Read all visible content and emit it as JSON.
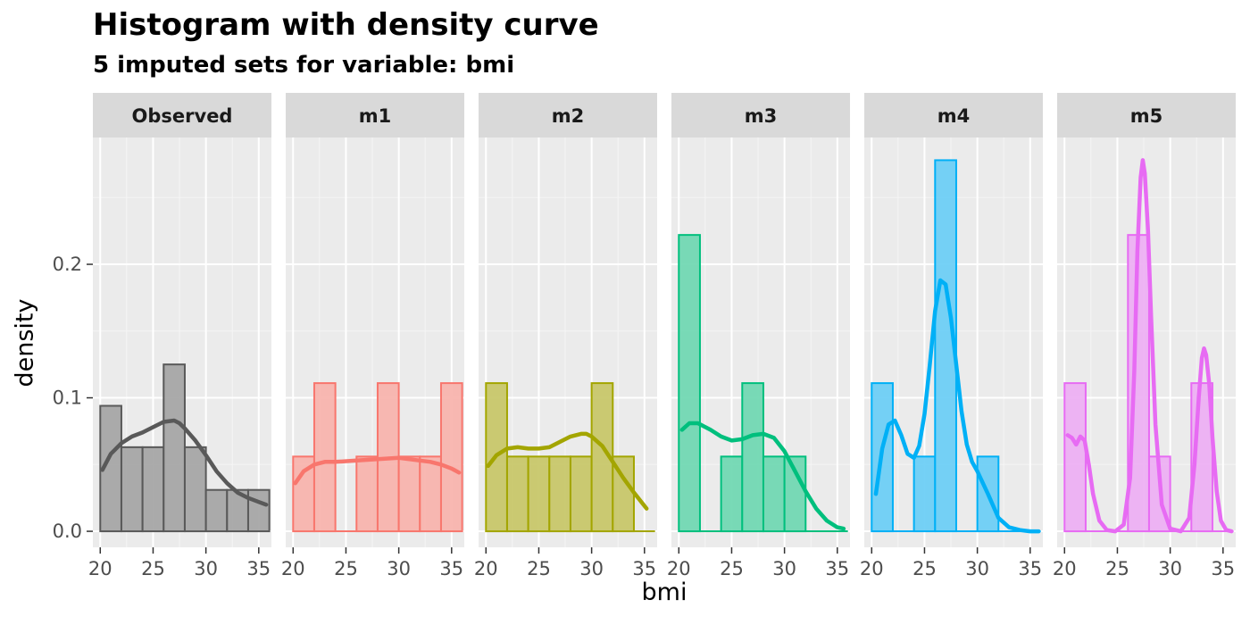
{
  "title": "Histogram with density curve",
  "subtitle": "5  imputed sets for variable:  bmi",
  "chart_data": {
    "type": "histogram",
    "xlabel": "bmi",
    "ylabel": "density",
    "xlim": [
      19.3,
      36.2
    ],
    "ylim": [
      -0.012,
      0.295
    ],
    "xticks": [
      20,
      25,
      30,
      35
    ],
    "yticks": [
      0.0,
      0.1,
      0.2
    ],
    "ytick_labels": [
      "0.0",
      "0.1",
      "0.2"
    ],
    "grid": true,
    "panel_background": "#EBEBEB",
    "panels": [
      {
        "name": "Observed",
        "color": "#595959",
        "fill": "#A6A6A6",
        "bins": [
          {
            "x0": 20,
            "x1": 22,
            "y": 0.094
          },
          {
            "x0": 22,
            "x1": 24,
            "y": 0.063
          },
          {
            "x0": 24,
            "x1": 26,
            "y": 0.063
          },
          {
            "x0": 26,
            "x1": 28,
            "y": 0.125
          },
          {
            "x0": 28,
            "x1": 30,
            "y": 0.063
          },
          {
            "x0": 30,
            "x1": 32,
            "y": 0.031
          },
          {
            "x0": 32,
            "x1": 34,
            "y": 0.031
          },
          {
            "x0": 34,
            "x1": 36,
            "y": 0.031
          }
        ],
        "density": {
          "x": [
            20.2,
            21,
            22,
            23,
            24,
            25,
            26,
            27,
            27.5,
            28,
            29,
            30,
            31,
            32,
            33,
            34,
            35,
            35.7
          ],
          "y": [
            0.046,
            0.058,
            0.066,
            0.071,
            0.074,
            0.078,
            0.082,
            0.083,
            0.081,
            0.077,
            0.068,
            0.057,
            0.045,
            0.036,
            0.029,
            0.025,
            0.022,
            0.02
          ]
        }
      },
      {
        "name": "m1",
        "color": "#F8766D",
        "fill": "#F8B4AE",
        "bins": [
          {
            "x0": 20,
            "x1": 22,
            "y": 0.056
          },
          {
            "x0": 22,
            "x1": 24,
            "y": 0.111
          },
          {
            "x0": 26,
            "x1": 28,
            "y": 0.056
          },
          {
            "x0": 28,
            "x1": 30,
            "y": 0.111
          },
          {
            "x0": 30,
            "x1": 32,
            "y": 0.056
          },
          {
            "x0": 32,
            "x1": 34,
            "y": 0.056
          },
          {
            "x0": 34,
            "x1": 36,
            "y": 0.111
          }
        ],
        "density": {
          "x": [
            20.2,
            21,
            22,
            23,
            24,
            26,
            28,
            30,
            31,
            32,
            33,
            34,
            35,
            35.7
          ],
          "y": [
            0.036,
            0.045,
            0.05,
            0.052,
            0.052,
            0.053,
            0.054,
            0.055,
            0.054,
            0.053,
            0.052,
            0.05,
            0.047,
            0.044
          ]
        }
      },
      {
        "name": "m2",
        "color": "#A3A500",
        "fill": "#C8C76A",
        "bins": [
          {
            "x0": 20,
            "x1": 22,
            "y": 0.111
          },
          {
            "x0": 22,
            "x1": 24,
            "y": 0.056
          },
          {
            "x0": 24,
            "x1": 26,
            "y": 0.056
          },
          {
            "x0": 26,
            "x1": 28,
            "y": 0.056
          },
          {
            "x0": 28,
            "x1": 30,
            "y": 0.056
          },
          {
            "x0": 30,
            "x1": 32,
            "y": 0.111
          },
          {
            "x0": 32,
            "x1": 34,
            "y": 0.056
          }
        ],
        "density": {
          "x": [
            20.2,
            21,
            22,
            23,
            24,
            25,
            26,
            27,
            28,
            29,
            29.5,
            30,
            31,
            32,
            33,
            34,
            35.2
          ],
          "y": [
            0.049,
            0.057,
            0.062,
            0.063,
            0.062,
            0.062,
            0.063,
            0.067,
            0.071,
            0.073,
            0.073,
            0.071,
            0.064,
            0.052,
            0.04,
            0.029,
            0.017
          ]
        }
      },
      {
        "name": "m3",
        "color": "#00BF7D",
        "fill": "#72D8B3",
        "bins": [
          {
            "x0": 20,
            "x1": 22,
            "y": 0.222
          },
          {
            "x0": 24,
            "x1": 26,
            "y": 0.056
          },
          {
            "x0": 26,
            "x1": 28,
            "y": 0.111
          },
          {
            "x0": 28,
            "x1": 30,
            "y": 0.056
          },
          {
            "x0": 30,
            "x1": 32,
            "y": 0.056
          }
        ],
        "density": {
          "x": [
            20.3,
            21,
            21.8,
            23,
            24,
            25,
            26,
            27,
            28,
            29,
            30,
            31,
            32,
            33,
            34,
            35,
            35.6
          ],
          "y": [
            0.076,
            0.081,
            0.081,
            0.076,
            0.071,
            0.068,
            0.069,
            0.072,
            0.073,
            0.07,
            0.06,
            0.045,
            0.03,
            0.017,
            0.008,
            0.003,
            0.002
          ]
        }
      },
      {
        "name": "m4",
        "color": "#00B0F6",
        "fill": "#6ECFF6",
        "bins": [
          {
            "x0": 20,
            "x1": 22,
            "y": 0.111
          },
          {
            "x0": 24,
            "x1": 26,
            "y": 0.056
          },
          {
            "x0": 26,
            "x1": 28,
            "y": 0.278
          },
          {
            "x0": 30,
            "x1": 32,
            "y": 0.056
          }
        ],
        "density": {
          "x": [
            20.4,
            21,
            21.6,
            22.2,
            22.8,
            23.4,
            24,
            24.5,
            25,
            25.5,
            26,
            26.5,
            27,
            27.5,
            28,
            28.5,
            29,
            29.5,
            30,
            31,
            32,
            33,
            34,
            35,
            35.8
          ],
          "y": [
            0.028,
            0.062,
            0.08,
            0.083,
            0.072,
            0.058,
            0.055,
            0.064,
            0.088,
            0.125,
            0.165,
            0.188,
            0.185,
            0.16,
            0.125,
            0.09,
            0.065,
            0.052,
            0.045,
            0.028,
            0.01,
            0.003,
            0.001,
            0.0,
            0.0
          ]
        }
      },
      {
        "name": "m5",
        "color": "#E76BF3",
        "fill": "#EDB0F3",
        "bins": [
          {
            "x0": 20,
            "x1": 22,
            "y": 0.111
          },
          {
            "x0": 26,
            "x1": 28,
            "y": 0.222
          },
          {
            "x0": 28,
            "x1": 30,
            "y": 0.056
          },
          {
            "x0": 32,
            "x1": 34,
            "y": 0.111
          }
        ],
        "density": {
          "x": [
            20.3,
            20.7,
            21.1,
            21.5,
            21.9,
            22.3,
            22.7,
            23.3,
            24,
            24.8,
            25.6,
            26.2,
            26.6,
            26.9,
            27.2,
            27.4,
            27.6,
            27.9,
            28.2,
            28.6,
            29.2,
            30,
            31,
            31.8,
            32.3,
            32.7,
            33,
            33.2,
            33.4,
            33.7,
            34,
            34.4,
            34.8,
            35.3,
            35.8
          ],
          "y": [
            0.072,
            0.07,
            0.065,
            0.071,
            0.068,
            0.05,
            0.028,
            0.008,
            0.001,
            0.0,
            0.005,
            0.04,
            0.12,
            0.21,
            0.265,
            0.278,
            0.268,
            0.225,
            0.16,
            0.08,
            0.02,
            0.002,
            0.0,
            0.01,
            0.05,
            0.1,
            0.13,
            0.137,
            0.132,
            0.11,
            0.07,
            0.03,
            0.008,
            0.001,
            0.0
          ]
        }
      }
    ]
  }
}
